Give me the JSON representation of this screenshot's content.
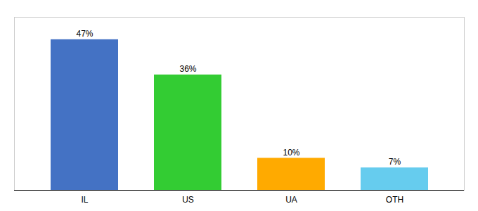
{
  "chart_data": {
    "type": "bar",
    "categories": [
      "IL",
      "US",
      "UA",
      "OTH"
    ],
    "values": [
      47,
      36,
      10,
      7
    ],
    "value_labels": [
      "47%",
      "36%",
      "10%",
      "7%"
    ],
    "colors": [
      "#4472c4",
      "#33cc33",
      "#ffaa00",
      "#66ccee"
    ],
    "ylim": [
      0,
      54
    ],
    "data_labels": true,
    "tick_labels": "x"
  }
}
